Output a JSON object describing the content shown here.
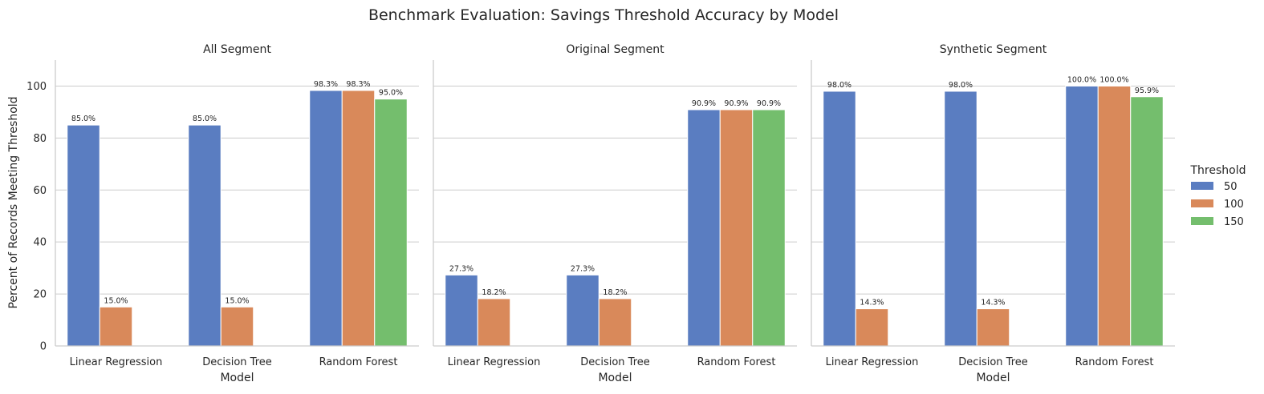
{
  "chart_data": {
    "type": "bar",
    "title": "Benchmark Evaluation: Savings Threshold Accuracy by Model",
    "xlabel": "Model",
    "ylabel": "Percent of Records Meeting Threshold",
    "ylim": [
      0,
      110
    ],
    "yticks": [
      0,
      20,
      40,
      60,
      80,
      100
    ],
    "grid": true,
    "legend": {
      "title": "Threshold",
      "placement": "right"
    },
    "categories": [
      "Linear Regression",
      "Decision Tree",
      "Random Forest"
    ],
    "series_colors": [
      "#5a7dc1",
      "#d9895a",
      "#74be6d"
    ],
    "panels": [
      {
        "title": "All Segment",
        "series": [
          {
            "name": "50",
            "values": [
              85.0,
              85.0,
              98.3
            ],
            "labels": [
              "85.0%",
              "85.0%",
              "98.3%"
            ]
          },
          {
            "name": "100",
            "values": [
              15.0,
              15.0,
              98.3
            ],
            "labels": [
              "15.0%",
              "15.0%",
              "98.3%"
            ]
          },
          {
            "name": "150",
            "values": [
              0,
              0,
              95.0
            ],
            "labels": [
              "",
              "",
              "95.0%"
            ]
          }
        ]
      },
      {
        "title": "Original Segment",
        "series": [
          {
            "name": "50",
            "values": [
              27.3,
              27.3,
              90.9
            ],
            "labels": [
              "27.3%",
              "27.3%",
              "90.9%"
            ]
          },
          {
            "name": "100",
            "values": [
              18.2,
              18.2,
              90.9
            ],
            "labels": [
              "18.2%",
              "18.2%",
              "90.9%"
            ]
          },
          {
            "name": "150",
            "values": [
              0,
              0,
              90.9
            ],
            "labels": [
              "",
              "",
              "90.9%"
            ]
          }
        ]
      },
      {
        "title": "Synthetic Segment",
        "series": [
          {
            "name": "50",
            "values": [
              98.0,
              98.0,
              100.0
            ],
            "labels": [
              "98.0%",
              "98.0%",
              "100.0%"
            ]
          },
          {
            "name": "100",
            "values": [
              14.3,
              14.3,
              100.0
            ],
            "labels": [
              "14.3%",
              "14.3%",
              "100.0%"
            ]
          },
          {
            "name": "150",
            "values": [
              0,
              0,
              95.9
            ],
            "labels": [
              "",
              "",
              "95.9%"
            ]
          }
        ]
      }
    ]
  }
}
